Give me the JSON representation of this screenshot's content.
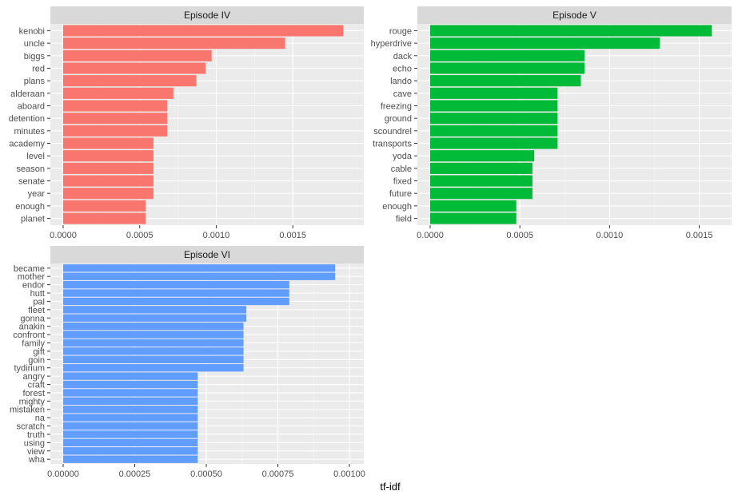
{
  "chart_data": {
    "type": "bar",
    "orientation": "horizontal",
    "facet": true,
    "xlabel": "tf-idf",
    "ylabel": "",
    "legend": "none",
    "grid": true,
    "panels": [
      {
        "name": "Episode IV",
        "color": "#F8766D",
        "xlim": [
          0,
          0.00187
        ],
        "xticks": [
          0,
          0.0005,
          0.001,
          0.0015
        ],
        "xtick_labels": [
          "0.0000",
          "0.0005",
          "0.0010",
          "0.0015"
        ],
        "categories": [
          "kenobi",
          "uncle",
          "biggs",
          "red",
          "plans",
          "alderaan",
          "aboard",
          "detention",
          "minutes",
          "academy",
          "level",
          "season",
          "senate",
          "year",
          "enough",
          "planet"
        ],
        "values": [
          0.00183,
          0.00145,
          0.00097,
          0.00093,
          0.00087,
          0.00072,
          0.00068,
          0.00068,
          0.00068,
          0.00059,
          0.00059,
          0.00059,
          0.00059,
          0.00059,
          0.00054,
          0.00054
        ]
      },
      {
        "name": "Episode V",
        "color": "#00BA38",
        "xlim": [
          0,
          0.0016
        ],
        "xticks": [
          0,
          0.0005,
          0.001,
          0.0015
        ],
        "xtick_labels": [
          "0.0000",
          "0.0005",
          "0.0010",
          "0.0015"
        ],
        "categories": [
          "rouge",
          "hyperdrive",
          "dack",
          "echo",
          "lando",
          "cave",
          "freezing",
          "ground",
          "scoundrel",
          "transports",
          "yoda",
          "cable",
          "fixed",
          "future",
          "enough",
          "field"
        ],
        "values": [
          0.00157,
          0.00128,
          0.00086,
          0.00086,
          0.00084,
          0.00071,
          0.00071,
          0.00071,
          0.00071,
          0.00071,
          0.00058,
          0.00057,
          0.00057,
          0.00057,
          0.00048,
          0.00048
        ]
      },
      {
        "name": "Episode VI",
        "color": "#619CFF",
        "xlim": [
          0,
          0.001
        ],
        "xticks": [
          0,
          0.00025,
          0.0005,
          0.00075,
          0.001
        ],
        "xtick_labels": [
          "0.00000",
          "0.00025",
          "0.00050",
          "0.00075",
          "0.00100"
        ],
        "categories": [
          "became",
          "mother",
          "endor",
          "hutt",
          "pal",
          "fleet",
          "gonna",
          "anakin",
          "confront",
          "family",
          "gift",
          "goin",
          "tydirium",
          "angry",
          "craft",
          "forest",
          "mighty",
          "mistaken",
          "na",
          "scratch",
          "truth",
          "using",
          "view",
          "wha"
        ],
        "values": [
          0.00095,
          0.00095,
          0.00079,
          0.00079,
          0.00079,
          0.00064,
          0.00064,
          0.00063,
          0.00063,
          0.00063,
          0.00063,
          0.00063,
          0.00063,
          0.00047,
          0.00047,
          0.00047,
          0.00047,
          0.00047,
          0.00047,
          0.00047,
          0.00047,
          0.00047,
          0.00047,
          0.00047
        ]
      }
    ]
  }
}
